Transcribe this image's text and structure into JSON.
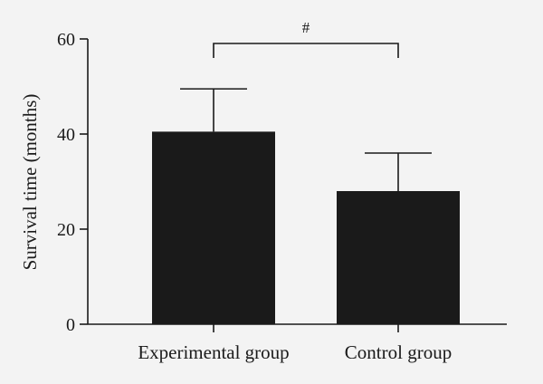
{
  "chart_data": {
    "type": "bar",
    "title": "",
    "xlabel": "",
    "ylabel": "Survival time (months)",
    "ylim": [
      0,
      60
    ],
    "yticks": [
      0,
      20,
      40,
      60
    ],
    "categories": [
      "Experimental group",
      "Control group"
    ],
    "values": [
      40.5,
      28
    ],
    "error_upper": [
      49.5,
      36
    ],
    "bar_color": "#1a1a1a",
    "significance": {
      "between": [
        0,
        1
      ],
      "label": "#"
    },
    "grid": false,
    "legend": "none"
  }
}
